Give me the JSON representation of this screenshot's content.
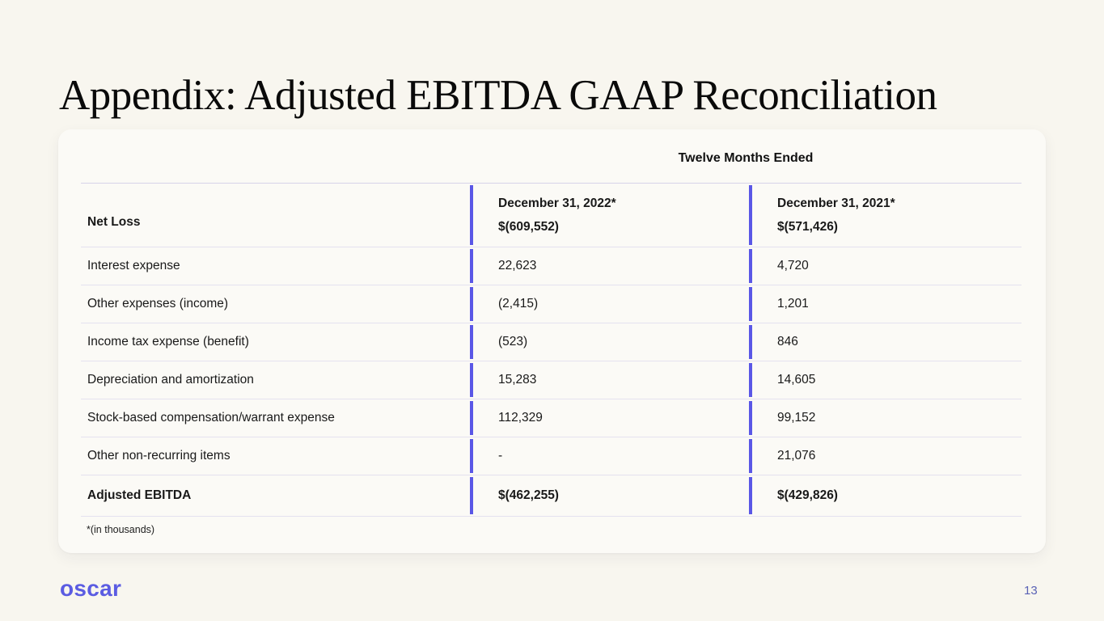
{
  "slide": {
    "title": "Appendix: Adjusted EBITDA GAAP Reconciliation",
    "footnote": "*(in thousands)",
    "logo_text": "oscar",
    "page_number": "13"
  },
  "table": {
    "group_header": "Twelve Months Ended",
    "header": {
      "label": "Net Loss",
      "col1_line1": "December 31, 2022*",
      "col1_line2": "$(609,552)",
      "col2_line1": "December 31, 2021*",
      "col2_line2": "$(571,426)"
    },
    "rows": [
      {
        "label": "Interest expense",
        "v2022": "22,623",
        "v2021": "4,720"
      },
      {
        "label": "Other expenses (income)",
        "v2022": "(2,415)",
        "v2021": "1,201"
      },
      {
        "label": "Income tax expense (benefit)",
        "v2022": "(523)",
        "v2021": "846"
      },
      {
        "label": "Depreciation and amortization",
        "v2022": "15,283",
        "v2021": "14,605"
      },
      {
        "label": "Stock-based compensation/warrant expense",
        "v2022": "112,329",
        "v2021": "99,152"
      },
      {
        "label": "Other non-recurring items",
        "v2022": "-",
        "v2021": "21,076"
      },
      {
        "label": "Adjusted EBITDA",
        "v2022": "$(462,255)",
        "v2021": "$(429,826)"
      }
    ]
  },
  "colors": {
    "accent_bar": "#5a57e6",
    "logo": "#5b5ce2",
    "page_number": "#5a62b5",
    "page_background": "#f8f6ef",
    "card_background": "#fbfaf6"
  }
}
